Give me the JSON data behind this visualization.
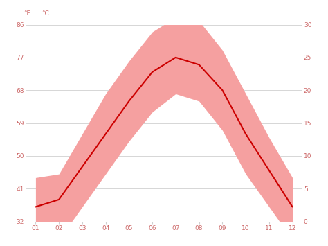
{
  "months": [
    1,
    2,
    3,
    4,
    5,
    6,
    7,
    8,
    9,
    10,
    11,
    12
  ],
  "month_labels": [
    "01",
    "02",
    "03",
    "04",
    "05",
    "06",
    "07",
    "08",
    "09",
    "10",
    "11",
    "12"
  ],
  "avg_temp_f": [
    36,
    38,
    47,
    56,
    65,
    73,
    77,
    75,
    68,
    56,
    46,
    36
  ],
  "high_temp_f": [
    44,
    45,
    56,
    67,
    76,
    84,
    88,
    87,
    79,
    67,
    55,
    44
  ],
  "low_temp_f": [
    26,
    27,
    36,
    45,
    54,
    62,
    67,
    65,
    57,
    45,
    36,
    27
  ],
  "ylim_f": [
    32,
    86
  ],
  "yticks_f": [
    32,
    41,
    50,
    59,
    68,
    77,
    86
  ],
  "yticks_c": [
    0,
    5,
    10,
    15,
    20,
    25,
    30
  ],
  "ytick_labels_f": [
    "32",
    "41",
    "50",
    "59",
    "68",
    "77",
    "86"
  ],
  "ytick_labels_c": [
    "0",
    "5",
    "10",
    "15",
    "20",
    "25",
    "30"
  ],
  "line_color": "#cc0000",
  "fill_color": "#f5a0a0",
  "background_color": "#ffffff",
  "grid_color": "#d0d0d0",
  "label_color": "#cc6666",
  "figsize": [
    4.74,
    3.55
  ],
  "dpi": 100
}
